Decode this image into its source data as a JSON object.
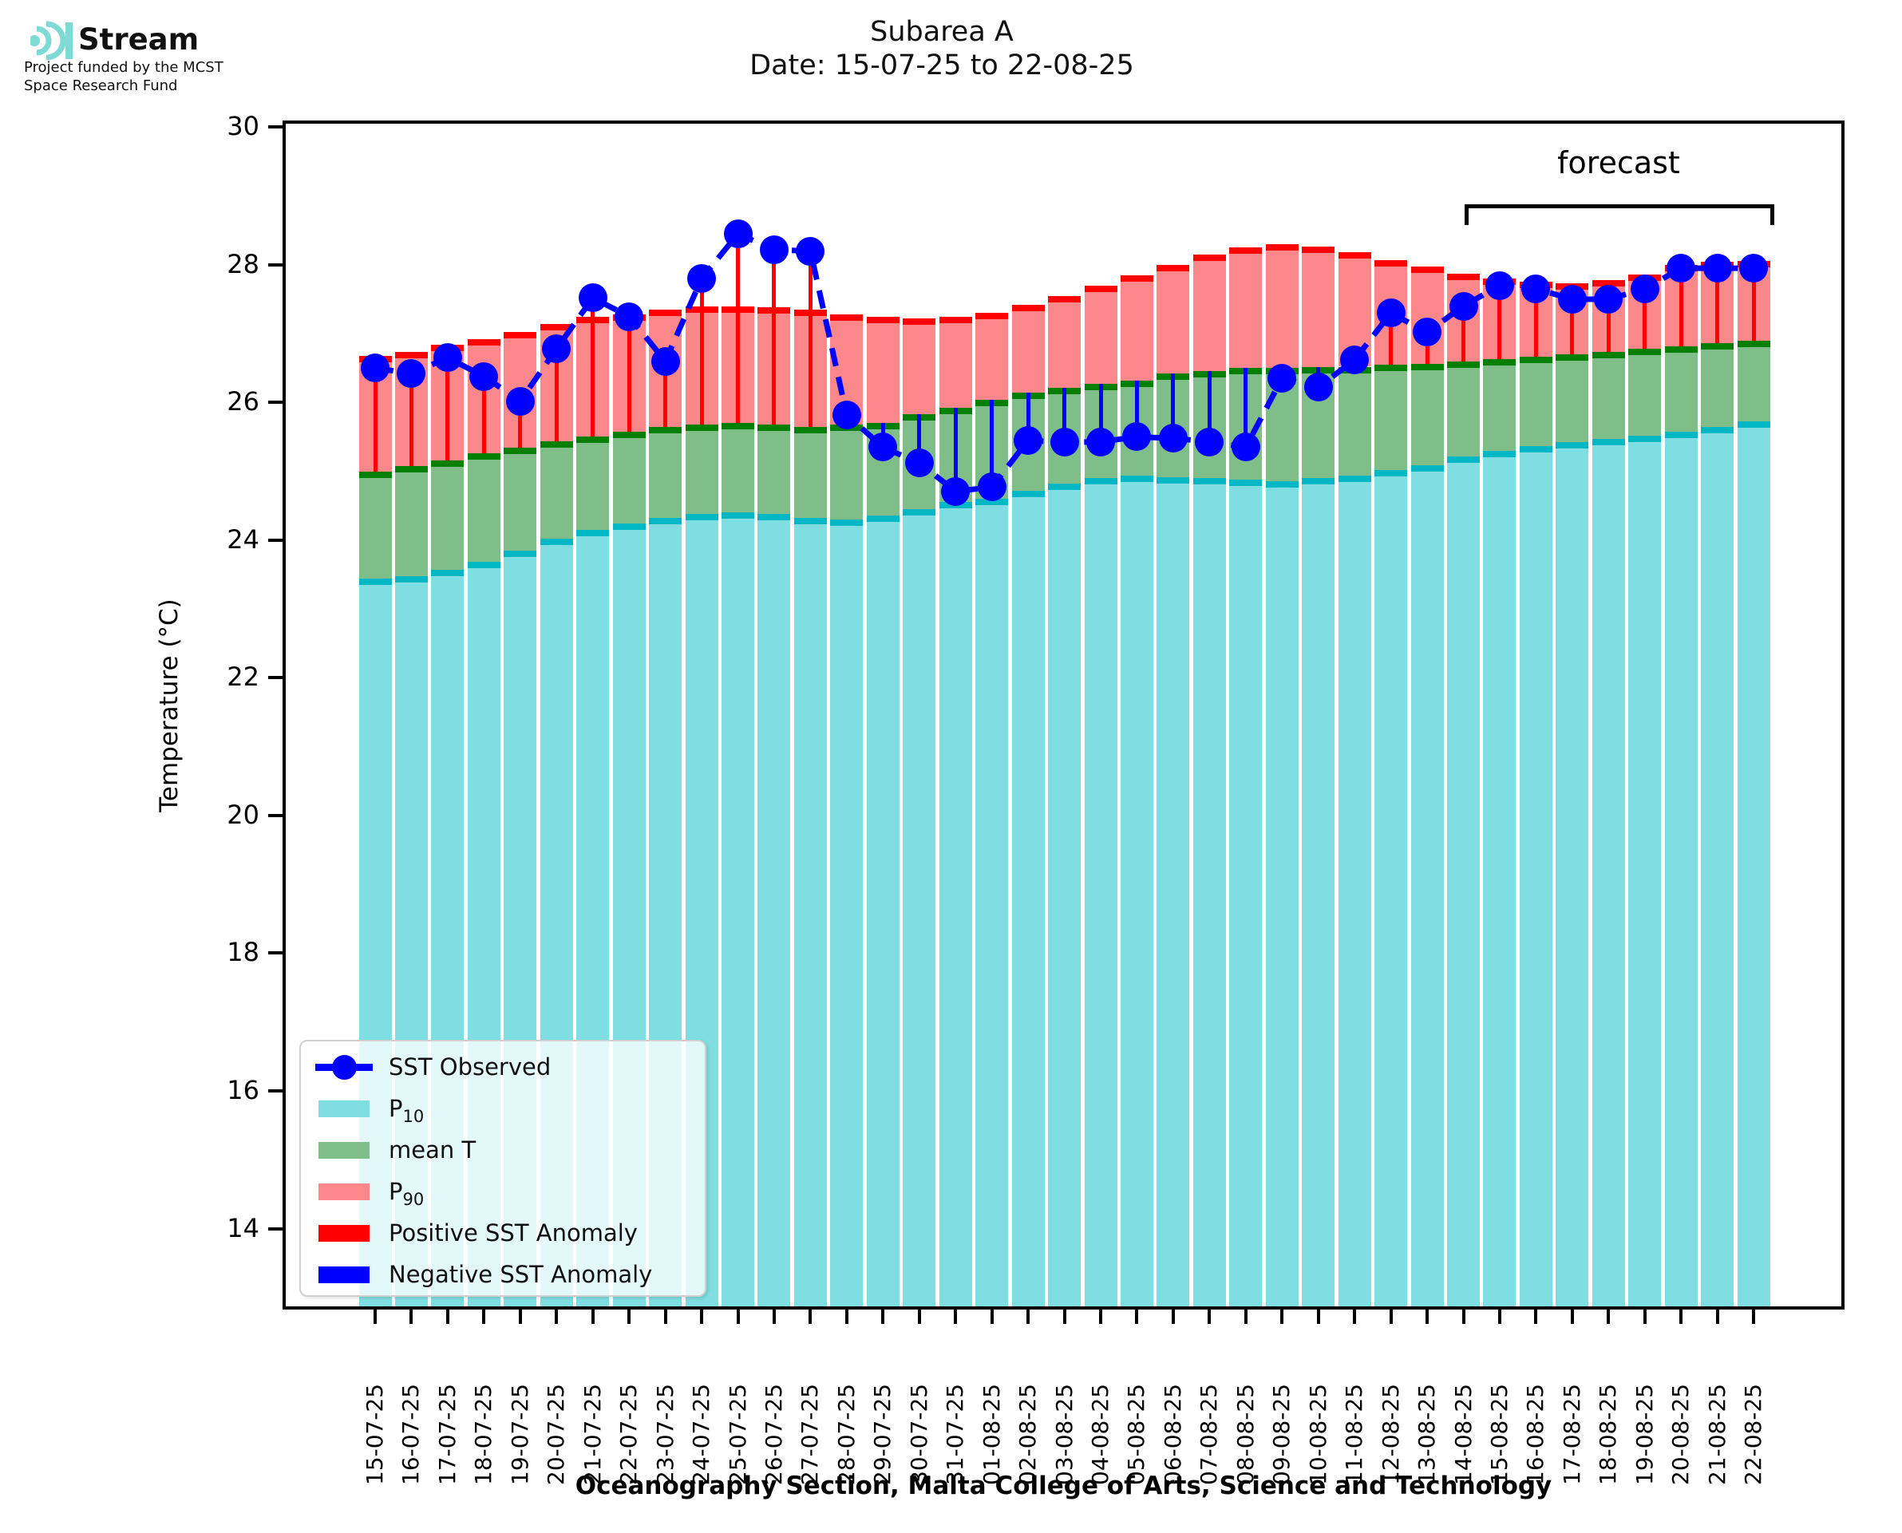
{
  "logo": {
    "brand": "Stream",
    "funding_line1": "Project funded by the MCST",
    "funding_line2": "Space Research Fund",
    "icon": "sound-wave-arcs",
    "icon_color": "#7fd9d4"
  },
  "title": {
    "line1": "Subarea A",
    "line2": "Date: 15-07-25 to 22-08-25"
  },
  "forecast": {
    "label": "forecast",
    "start_index": 30
  },
  "axes": {
    "ylabel": "Temperature (°C)",
    "xlabel": "Oceanography Section, Malta College of Arts, Science and Technology",
    "yticks": [
      30,
      28,
      26,
      24,
      22,
      20,
      18,
      16,
      14
    ],
    "ymax": 30.05,
    "ymin": 12.87
  },
  "legend": {
    "sst_observed": "SST Observed",
    "p10_prefix": "P",
    "p10_sub": "10",
    "mean_t": "mean T",
    "p90_prefix": "P",
    "p90_sub": "90",
    "positive": "Positive SST Anomaly",
    "negative": "Negative SST Anomaly"
  },
  "colors": {
    "p10_fill": "#7edee1",
    "p10_cap": "#00b8c5",
    "mean_fill": "#7fbe88",
    "mean_cap": "#038003",
    "p90_fill": "#fa8789",
    "p90_cap": "#ff0000",
    "positive_anomaly": "#ff0000",
    "negative_anomaly": "#0000ff",
    "observed": "#0000ff"
  },
  "chart_data": {
    "type": "bar",
    "title": "Subarea A",
    "subtitle": "Date: 15-07-25 to 22-08-25",
    "xlabel": "Oceanography Section, Malta College of Arts, Science and Technology",
    "ylabel": "Temperature (°C)",
    "ylim": [
      12.9,
      30
    ],
    "yticks": [
      14,
      16,
      18,
      20,
      22,
      24,
      26,
      28,
      30
    ],
    "grid": false,
    "legend_position": "lower left",
    "forecast_start": "14-08-25",
    "categories": [
      "15-07-25",
      "16-07-25",
      "17-07-25",
      "18-07-25",
      "19-07-25",
      "20-07-25",
      "21-07-25",
      "22-07-25",
      "23-07-25",
      "24-07-25",
      "25-07-25",
      "26-07-25",
      "27-07-25",
      "28-07-25",
      "29-07-25",
      "30-07-25",
      "31-07-25",
      "01-08-25",
      "02-08-25",
      "03-08-25",
      "04-08-25",
      "05-08-25",
      "06-08-25",
      "07-08-25",
      "08-08-25",
      "09-08-25",
      "10-08-25",
      "11-08-25",
      "12-08-25",
      "13-08-25",
      "14-08-25",
      "15-08-25",
      "16-08-25",
      "17-08-25",
      "18-08-25",
      "19-08-25",
      "20-08-25",
      "21-08-25",
      "22-08-25"
    ],
    "series": [
      {
        "name": "P10",
        "type": "bar",
        "role": "10th-percentile climatology",
        "values": [
          23.44,
          23.48,
          23.57,
          23.69,
          23.85,
          24.02,
          24.15,
          24.24,
          24.32,
          24.38,
          24.4,
          24.38,
          24.32,
          24.3,
          24.36,
          24.45,
          24.55,
          24.6,
          24.72,
          24.82,
          24.9,
          24.94,
          24.92,
          24.9,
          24.88,
          24.86,
          24.9,
          24.94,
          25.02,
          25.09,
          25.22,
          25.3,
          25.37,
          25.42,
          25.47,
          25.52,
          25.58,
          25.65,
          25.73
        ]
      },
      {
        "name": "mean T",
        "type": "bar",
        "role": "climatological mean",
        "values": [
          25.0,
          25.08,
          25.16,
          25.26,
          25.34,
          25.44,
          25.51,
          25.58,
          25.64,
          25.68,
          25.7,
          25.68,
          25.65,
          25.68,
          25.7,
          25.83,
          25.92,
          26.04,
          26.14,
          26.21,
          26.27,
          26.32,
          26.42,
          26.46,
          26.5,
          26.5,
          26.51,
          26.52,
          26.55,
          26.56,
          26.6,
          26.63,
          26.66,
          26.7,
          26.74,
          26.78,
          26.82,
          26.86,
          26.9
        ]
      },
      {
        "name": "P90",
        "type": "bar",
        "role": "90th-percentile climatology",
        "values": [
          26.68,
          26.73,
          26.84,
          26.92,
          27.02,
          27.14,
          27.24,
          27.28,
          27.35,
          27.4,
          27.4,
          27.38,
          27.35,
          27.28,
          27.24,
          27.22,
          27.24,
          27.3,
          27.42,
          27.55,
          27.7,
          27.85,
          28.0,
          28.15,
          28.25,
          28.3,
          28.27,
          28.18,
          28.07,
          27.97,
          27.87,
          27.8,
          27.76,
          27.73,
          27.78,
          27.86,
          28.0,
          28.04,
          28.06
        ]
      },
      {
        "name": "SST Observed",
        "type": "line",
        "style": "dashed with circle markers",
        "values": [
          26.5,
          26.42,
          26.65,
          26.38,
          26.02,
          26.78,
          27.52,
          27.25,
          26.6,
          27.8,
          28.45,
          28.22,
          28.2,
          25.82,
          25.35,
          25.12,
          24.71,
          24.77,
          25.45,
          25.42,
          25.43,
          25.5,
          25.48,
          25.43,
          25.35,
          26.35,
          26.22,
          26.62,
          27.3,
          27.02,
          27.4,
          27.7,
          27.65,
          27.5,
          27.5,
          27.65,
          27.95,
          27.95,
          27.95
        ]
      }
    ],
    "anomaly": {
      "definition": "SST Observed minus mean T, drawn as vertical line from mean to observation",
      "positive_color": "#ff0000",
      "negative_color": "#0000ff"
    }
  }
}
